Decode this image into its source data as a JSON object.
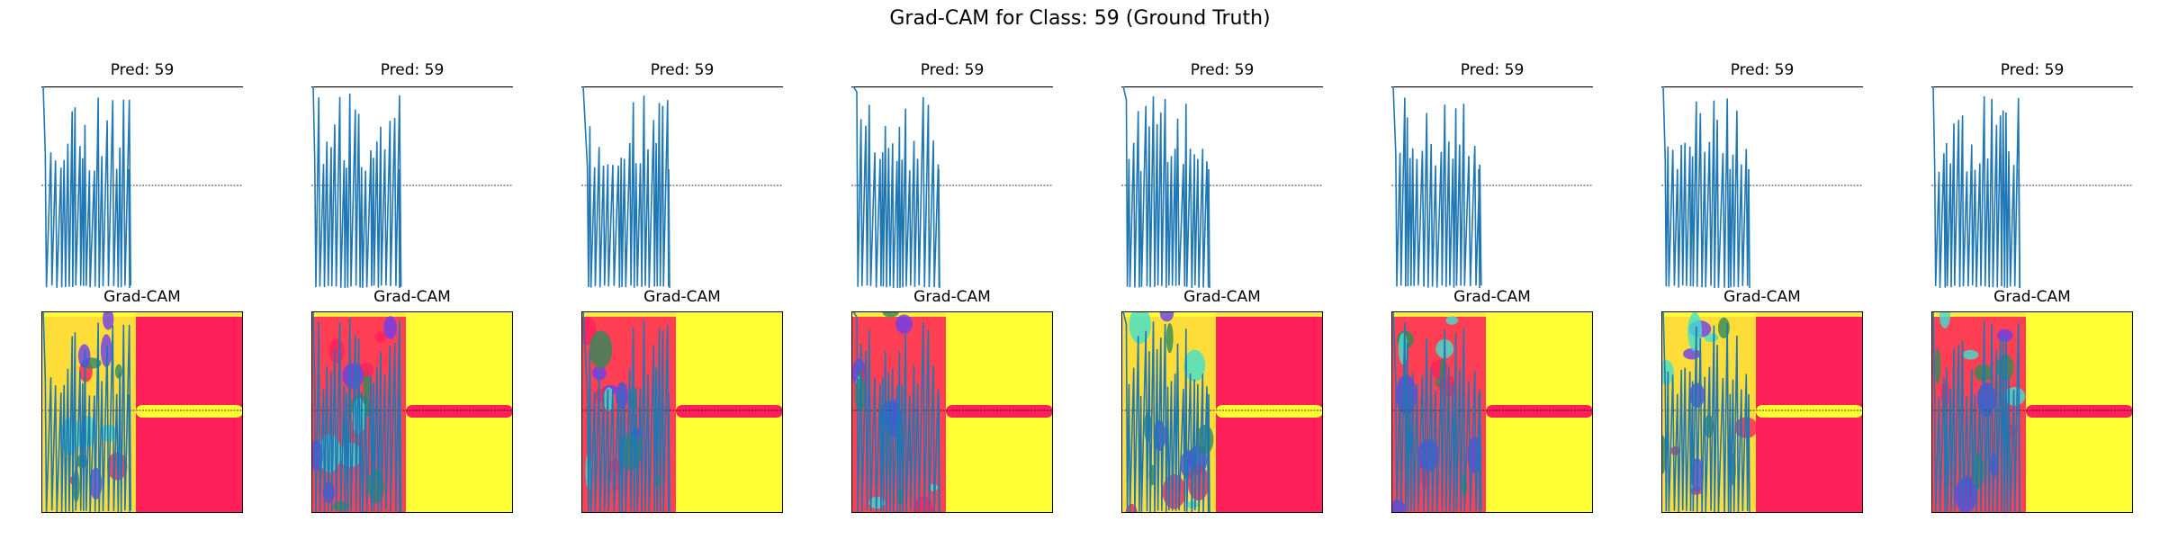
{
  "suptitle": "Grad-CAM for Class: 59 (Ground Truth)",
  "colors": {
    "signal": "#1f77b4",
    "axis": "#000000",
    "heat_low": "#ff1f5a",
    "heat_high": "#ffff33",
    "hotspot_green": "#2e8b57",
    "hotspot_blue": "#6a3df0",
    "hotspot_cyan": "#40e0d0"
  },
  "chart_data": [
    {
      "type": "line",
      "title": "Pred: 59",
      "cam_title": "Grad-CAM",
      "prediction": "59",
      "variant": 0
    },
    {
      "type": "line",
      "title": "Pred: 59",
      "cam_title": "Grad-CAM",
      "prediction": "59",
      "variant": 1
    },
    {
      "type": "line",
      "title": "Pred: 59",
      "cam_title": "Grad-CAM",
      "prediction": "59",
      "variant": 2
    },
    {
      "type": "line",
      "title": "Pred: 59",
      "cam_title": "Grad-CAM",
      "prediction": "59",
      "variant": 3
    },
    {
      "type": "line",
      "title": "Pred: 59",
      "cam_title": "Grad-CAM",
      "prediction": "59",
      "variant": 4
    },
    {
      "type": "line",
      "title": "Pred: 59",
      "cam_title": "Grad-CAM",
      "prediction": "59",
      "variant": 5
    },
    {
      "type": "line",
      "title": "Pred: 59",
      "cam_title": "Grad-CAM",
      "prediction": "59",
      "variant": 6
    },
    {
      "type": "line",
      "title": "Pred: 59",
      "cam_title": "Grad-CAM",
      "prediction": "59",
      "variant": 7
    }
  ]
}
